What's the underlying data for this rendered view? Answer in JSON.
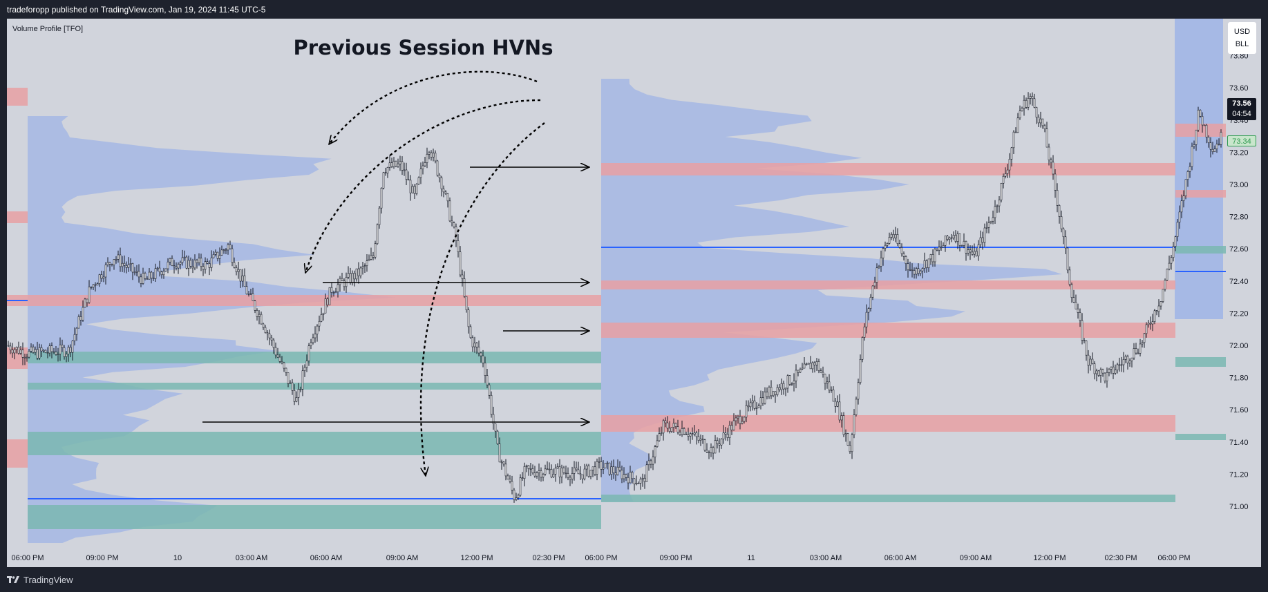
{
  "header": {
    "publish_info": "tradeforopp published on TradingView.com, Jan 19, 2024 11:45 UTC-5"
  },
  "indicator": {
    "name": "Volume Profile [TFO]"
  },
  "annotation": {
    "title": "Previous Session HVNs"
  },
  "price_scale": {
    "currency": "USD",
    "unit": "BLL",
    "ticks": [
      "73.80",
      "73.60",
      "73.40",
      "73.20",
      "73.00",
      "72.80",
      "72.60",
      "72.40",
      "72.20",
      "72.00",
      "71.80",
      "71.60",
      "71.40",
      "71.20",
      "71.00"
    ],
    "last_price": "73.56",
    "countdown": "04:54",
    "secondary_price": "73.34"
  },
  "time_axis": {
    "labels": [
      "06:00 PM",
      "09:00 PM",
      "10",
      "03:00 AM",
      "06:00 AM",
      "09:00 AM",
      "12:00 PM",
      "02:30 PM",
      "06:00 PM",
      "09:00 PM",
      "11",
      "03:00 AM",
      "06:00 AM",
      "09:00 AM",
      "12:00 PM",
      "02:30 PM",
      "06:00 PM"
    ]
  },
  "footer": {
    "brand": "TradingView"
  },
  "colors": {
    "background": "#d1d4dc",
    "frame": "#1e222d",
    "profile": "#9fb4e6",
    "hvn_red": "#e8a0a3",
    "hvn_teal": "#7ab7b1",
    "poc_line": "#2962ff",
    "candle_body": "#ffffff",
    "candle_wick": "#131722"
  }
}
